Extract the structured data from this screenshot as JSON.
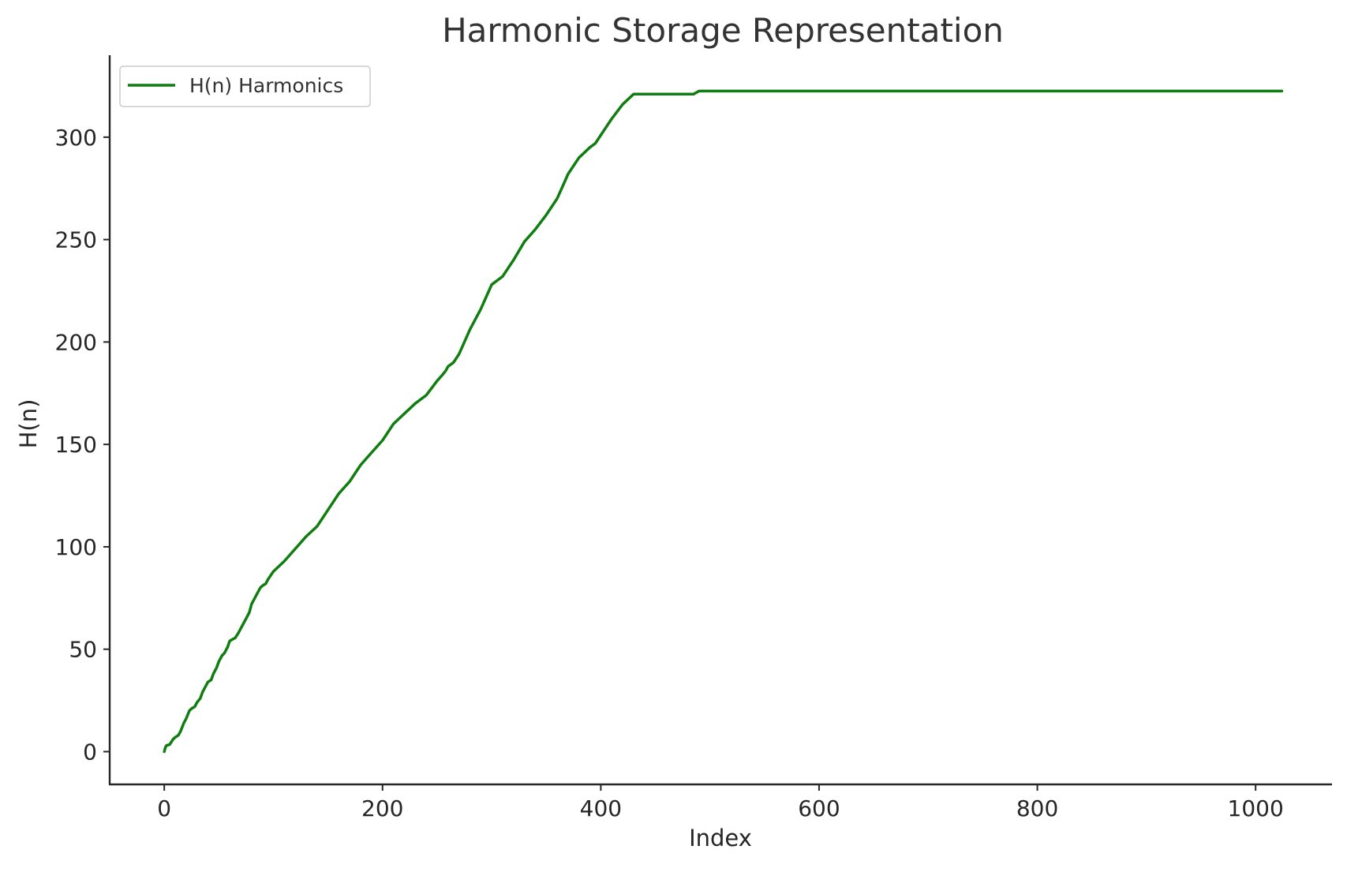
{
  "chart_data": {
    "type": "line",
    "title": "Harmonic Storage Representation",
    "xlabel": "Index",
    "ylabel": "H(n)",
    "xlim": [
      -50,
      1070
    ],
    "ylim": [
      -16,
      340
    ],
    "xticks": [
      0,
      200,
      400,
      600,
      800,
      1000
    ],
    "yticks": [
      0,
      50,
      100,
      150,
      200,
      250,
      300
    ],
    "grid": false,
    "legend_position": "top-left",
    "series": [
      {
        "name": "H(n) Harmonics",
        "color": "#0f7d0f",
        "x": [
          0,
          1,
          2,
          5,
          8,
          10,
          13,
          15,
          18,
          20,
          23,
          25,
          28,
          30,
          33,
          35,
          38,
          40,
          43,
          45,
          48,
          50,
          53,
          55,
          58,
          60,
          63,
          65,
          68,
          70,
          73,
          75,
          78,
          80,
          83,
          85,
          88,
          90,
          93,
          95,
          100,
          110,
          120,
          130,
          140,
          150,
          160,
          170,
          180,
          190,
          200,
          210,
          220,
          230,
          240,
          250,
          255,
          258,
          260,
          265,
          270,
          275,
          280,
          285,
          290,
          300,
          310,
          320,
          330,
          340,
          350,
          360,
          365,
          370,
          380,
          390,
          395,
          400,
          410,
          420,
          430,
          440,
          450,
          460,
          470,
          475,
          480,
          485,
          490,
          500,
          505,
          510,
          512,
          600,
          700,
          800,
          900,
          1000,
          1010,
          1012,
          1013,
          1015,
          1020,
          1024
        ],
        "values": [
          0,
          2,
          3,
          3.5,
          6,
          7,
          8,
          10,
          14,
          16,
          20,
          21,
          22,
          24,
          26,
          29,
          32,
          34,
          35,
          38,
          41,
          44,
          47,
          48,
          51,
          54,
          55,
          55.5,
          58,
          60,
          63,
          65,
          68,
          72,
          75,
          77,
          80,
          81,
          82,
          84,
          88,
          93,
          99,
          105,
          110,
          118,
          126,
          132,
          140,
          146,
          152,
          160,
          165,
          170,
          174,
          181,
          184,
          186,
          188,
          190,
          194,
          200,
          206,
          211,
          216,
          228,
          232,
          240,
          249,
          255,
          262,
          270,
          276,
          282,
          290,
          295,
          297,
          301,
          309,
          316,
          321,
          321,
          321,
          321,
          321,
          321,
          321,
          321,
          322.5,
          322.5,
          322.5,
          322.5,
          322.5,
          322.5,
          322.5,
          322.5,
          322.5,
          322.5,
          322.5,
          322.5,
          322.5,
          322.5,
          322.5,
          322.5
        ]
      }
    ]
  }
}
